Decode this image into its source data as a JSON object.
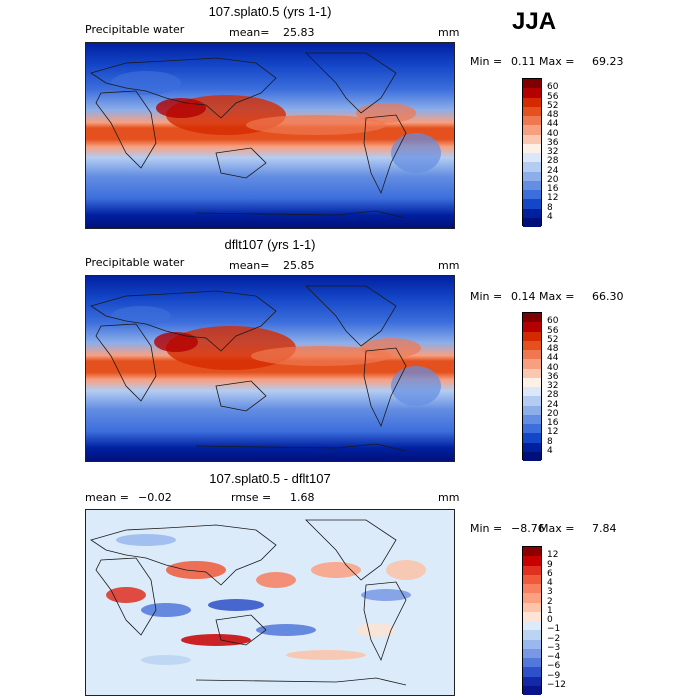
{
  "season": "JJA",
  "panels": [
    {
      "title": "107.splat0.5 (yrs 1-1)",
      "field_label": "Precipitable water",
      "mean_label": "mean=",
      "mean_value": "25.83",
      "units": "mm",
      "min_label": "Min =",
      "min_value": "0.11",
      "max_label": "Max =",
      "max_value": "69.23",
      "colorbar_labels": [
        "60",
        "56",
        "52",
        "48",
        "44",
        "40",
        "36",
        "32",
        "28",
        "24",
        "20",
        "16",
        "12",
        "8",
        "4"
      ]
    },
    {
      "title": "dflt107 (yrs 1-1)",
      "field_label": "Precipitable water",
      "mean_label": "mean=",
      "mean_value": "25.85",
      "units": "mm",
      "min_label": "Min =",
      "min_value": "0.14",
      "max_label": "Max =",
      "max_value": "66.30",
      "colorbar_labels": [
        "60",
        "56",
        "52",
        "48",
        "44",
        "40",
        "36",
        "32",
        "28",
        "24",
        "20",
        "16",
        "12",
        "8",
        "4"
      ]
    },
    {
      "title": "107.splat0.5 - dflt107",
      "mean_label": "mean =",
      "mean_value": "−0.02",
      "rmse_label": "rmse =",
      "rmse_value": "1.68",
      "units": "mm",
      "min_label": "Min =",
      "min_value": "−8.76",
      "max_label": "Max =",
      "max_value": "7.84",
      "colorbar_labels": [
        "12",
        "9",
        "6",
        "4",
        "3",
        "2",
        "1",
        "0",
        "−1",
        "−2",
        "−3",
        "−4",
        "−6",
        "−9",
        "−12"
      ]
    }
  ],
  "colors": {
    "abs_scale": [
      "#7f0000",
      "#b40000",
      "#d42a00",
      "#e4501e",
      "#f07850",
      "#f7a080",
      "#fac8b0",
      "#fdf0e6",
      "#dce8fa",
      "#b4ccf2",
      "#8caeea",
      "#648ee2",
      "#3c6edc",
      "#1446c8",
      "#0020a0",
      "#00107a"
    ],
    "diff_scale": [
      "#8c0000",
      "#c80000",
      "#e03020",
      "#f05a3a",
      "#f88060",
      "#fba080",
      "#fcc4a8",
      "#fde4d4",
      "#dcebfa",
      "#bcd4f4",
      "#9ab8ee",
      "#7898e4",
      "#5278dc",
      "#2e50c8",
      "#1428a8",
      "#0a148a"
    ],
    "coastline": "#1a1a1a"
  }
}
